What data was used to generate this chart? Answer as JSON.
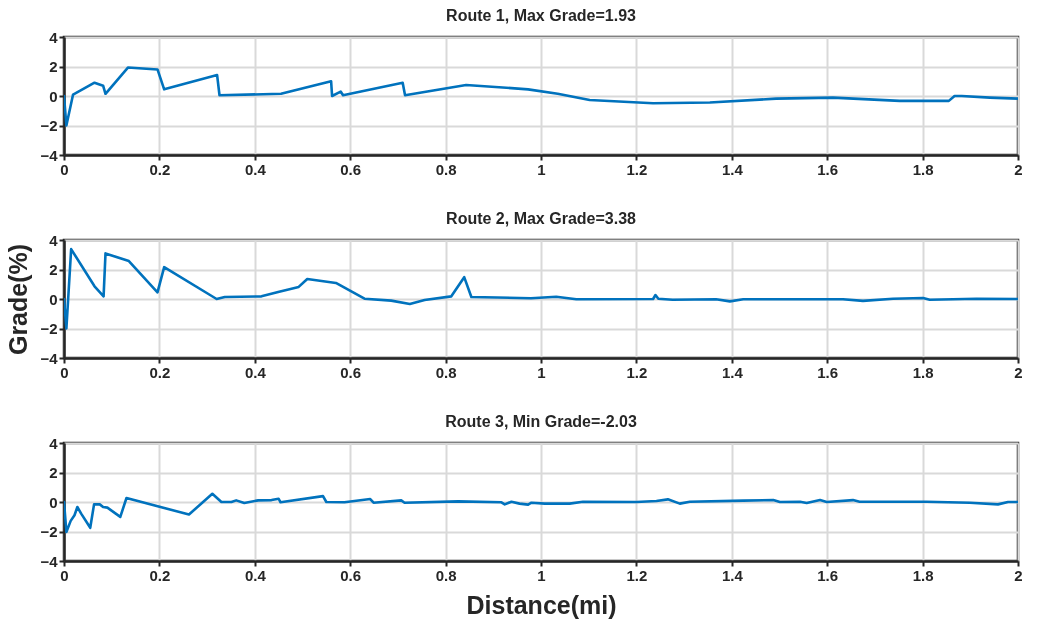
{
  "chart_data": [
    {
      "type": "line",
      "title": "Route 1, Max Grade=1.93",
      "x": [
        0,
        0.005,
        0.019,
        0.064,
        0.082,
        0.087,
        0.134,
        0.196,
        0.21,
        0.321,
        0.326,
        0.455,
        0.56,
        0.562,
        0.58,
        0.585,
        0.71,
        0.715,
        0.843,
        0.973,
        1.035,
        1.102,
        1.235,
        1.354,
        1.493,
        1.612,
        1.752,
        1.855,
        1.867,
        1.882,
        1.941,
        2.0
      ],
      "series": [
        {
          "color": "#0072bd",
          "values": [
            0,
            -2,
            0.1,
            0.9,
            0.7,
            0.15,
            1.93,
            1.8,
            0.45,
            1.42,
            0.05,
            0.15,
            1.0,
            0,
            0.3,
            0.05,
            0.9,
            0.05,
            0.75,
            0.45,
            0.15,
            -0.27,
            -0.49,
            -0.44,
            -0.18,
            -0.11,
            -0.33,
            -0.33,
            0,
            0,
            -0.11,
            -0.18
          ]
        }
      ],
      "xlim": [
        0,
        2
      ],
      "xticks": [
        0,
        0.2,
        0.4,
        0.6,
        0.8,
        1,
        1.2,
        1.4,
        1.6,
        1.8,
        2
      ],
      "ylim": [
        -4,
        4
      ],
      "yticks": [
        -4,
        -2,
        0,
        2,
        4
      ],
      "grid": true
    },
    {
      "type": "line",
      "title": "Route 2, Max Grade=3.38",
      "ylabel": "Grade(%)",
      "x": [
        0,
        0.005,
        0.015,
        0.064,
        0.083,
        0.087,
        0.136,
        0.196,
        0.21,
        0.32,
        0.337,
        0.414,
        0.449,
        0.492,
        0.51,
        0.57,
        0.63,
        0.686,
        0.725,
        0.756,
        0.812,
        0.839,
        0.854,
        0.979,
        1.032,
        1.074,
        1.235,
        1.24,
        1.246,
        1.276,
        1.367,
        1.396,
        1.424,
        1.633,
        1.675,
        1.738,
        1.801,
        1.815,
        1.913,
        2.0
      ],
      "series": [
        {
          "color": "#0072bd",
          "values": [
            0,
            -2,
            3.38,
            0.86,
            0.18,
            3.09,
            2.57,
            0.45,
            2.16,
            0,
            0.14,
            0.18,
            0.48,
            0.82,
            1.36,
            1.09,
            0.02,
            -0.11,
            -0.34,
            -0.07,
            0.18,
            1.48,
            0.14,
            0.05,
            0.15,
            -0.02,
            0,
            0.27,
            0.02,
            -0.05,
            -0.02,
            -0.16,
            -0.02,
            -0.02,
            -0.13,
            0.02,
            0.07,
            -0.05,
            0.02,
            0
          ]
        }
      ],
      "xlim": [
        0,
        2
      ],
      "xticks": [
        0,
        0.2,
        0.4,
        0.6,
        0.8,
        1,
        1.2,
        1.4,
        1.6,
        1.8,
        2
      ],
      "ylim": [
        -4,
        4
      ],
      "yticks": [
        -4,
        -2,
        0,
        2,
        4
      ],
      "grid": true
    },
    {
      "type": "line",
      "title": "Route 3, Min Grade=-2.03",
      "xlabel": "Distance(mi)",
      "x": [
        0,
        0.005,
        0.014,
        0.022,
        0.028,
        0.036,
        0.055,
        0.063,
        0.075,
        0.082,
        0.091,
        0.118,
        0.131,
        0.262,
        0.311,
        0.33,
        0.351,
        0.361,
        0.378,
        0.407,
        0.435,
        0.45,
        0.454,
        0.543,
        0.55,
        0.588,
        0.642,
        0.649,
        0.707,
        0.714,
        0.826,
        0.917,
        0.924,
        0.938,
        0.955,
        0.973,
        0.98,
        1.008,
        1.06,
        1.088,
        1.2,
        1.242,
        1.266,
        1.291,
        1.312,
        1.424,
        1.487,
        1.501,
        1.543,
        1.557,
        1.585,
        1.599,
        1.654,
        1.668,
        1.808,
        1.899,
        1.958,
        1.979,
        2.0
      ],
      "series": [
        {
          "color": "#0072bd",
          "values": [
            0,
            -2.03,
            -1.28,
            -0.9,
            -0.34,
            -0.79,
            -1.75,
            -0.16,
            -0.16,
            -0.34,
            -0.38,
            -1.01,
            0.27,
            -0.85,
            0.56,
            0,
            0,
            0.11,
            -0.07,
            0.11,
            0.13,
            0.22,
            -0.02,
            0.4,
            0,
            -0.02,
            0.2,
            -0.05,
            0.11,
            -0.05,
            0.04,
            -0.02,
            -0.16,
            0.02,
            -0.11,
            -0.18,
            -0.05,
            -0.11,
            -0.11,
            0.02,
            0,
            0.07,
            0.18,
            -0.11,
            0.02,
            0.09,
            0.13,
            0,
            0.02,
            -0.07,
            0.13,
            0,
            0.13,
            0.02,
            0.02,
            -0.05,
            -0.16,
            0,
            0
          ]
        }
      ],
      "xlim": [
        0,
        2
      ],
      "xticks": [
        0,
        0.2,
        0.4,
        0.6,
        0.8,
        1,
        1.2,
        1.4,
        1.6,
        1.8,
        2
      ],
      "ylim": [
        -4,
        4
      ],
      "yticks": [
        -4,
        -2,
        0,
        2,
        4
      ],
      "grid": true
    }
  ]
}
